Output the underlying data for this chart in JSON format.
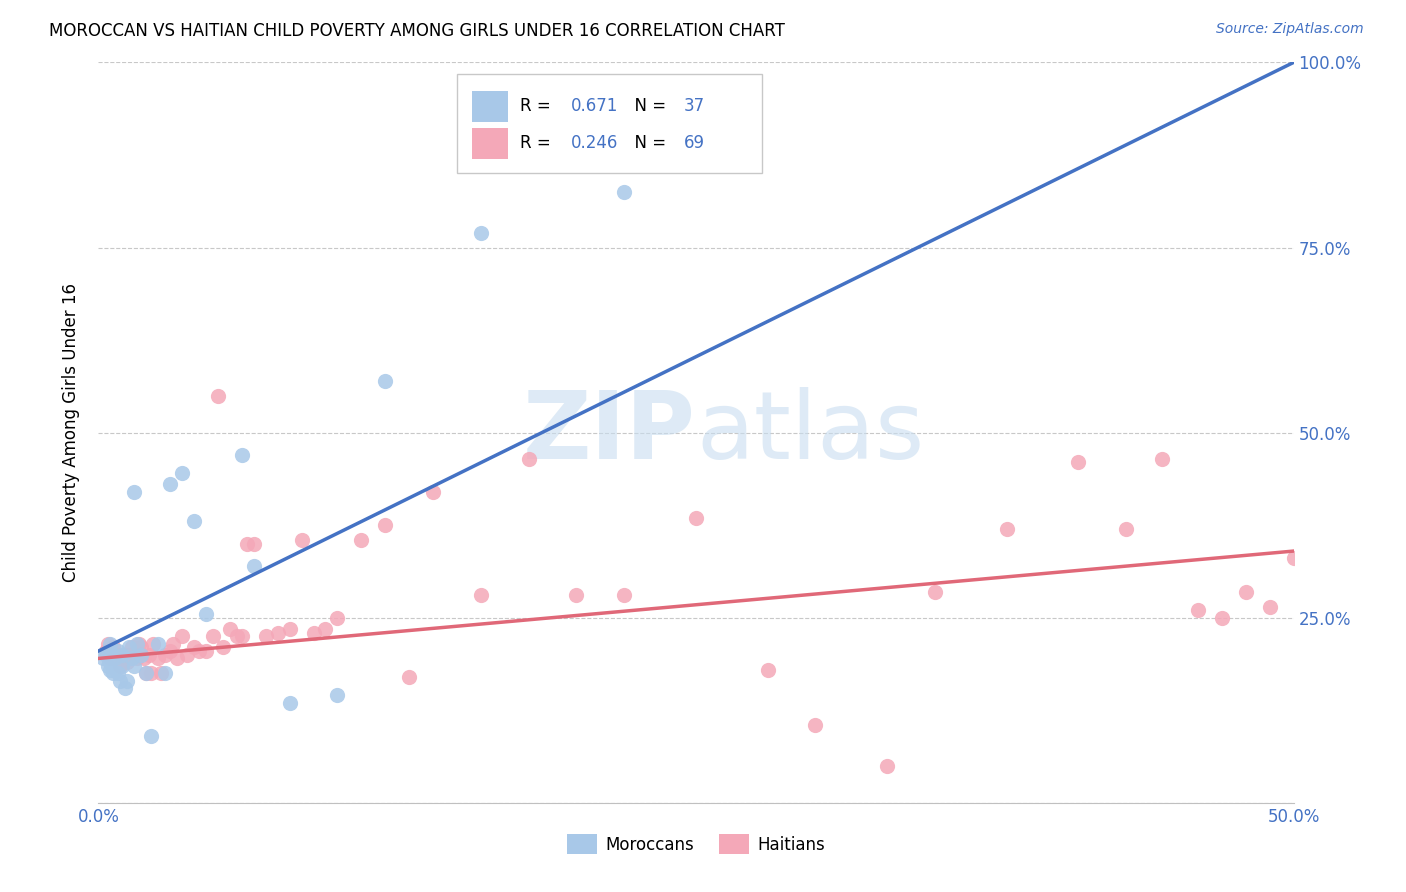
{
  "title": "MOROCCAN VS HAITIAN CHILD POVERTY AMONG GIRLS UNDER 16 CORRELATION CHART",
  "source": "Source: ZipAtlas.com",
  "ylabel": "Child Poverty Among Girls Under 16",
  "xlim": [
    0.0,
    0.5
  ],
  "ylim": [
    0.0,
    1.0
  ],
  "moroccan_R": "0.671",
  "moroccan_N": "37",
  "haitian_R": "0.246",
  "haitian_N": "69",
  "moroccan_color": "#a8c8e8",
  "haitian_color": "#f4a8b8",
  "moroccan_line_color": "#4472c4",
  "haitian_line_color": "#e06878",
  "moroccan_line": [
    0.0,
    0.205,
    0.5,
    1.0
  ],
  "haitian_line": [
    0.0,
    0.195,
    0.5,
    0.34
  ],
  "watermark_zip": "ZIP",
  "watermark_atlas": "atlas",
  "moroccan_scatter_x": [
    0.002,
    0.003,
    0.004,
    0.005,
    0.005,
    0.005,
    0.005,
    0.006,
    0.007,
    0.008,
    0.008,
    0.009,
    0.01,
    0.01,
    0.011,
    0.012,
    0.013,
    0.014,
    0.015,
    0.015,
    0.016,
    0.018,
    0.02,
    0.022,
    0.025,
    0.028,
    0.03,
    0.035,
    0.04,
    0.045,
    0.06,
    0.065,
    0.08,
    0.1,
    0.12,
    0.16,
    0.22
  ],
  "moroccan_scatter_y": [
    0.195,
    0.2,
    0.185,
    0.18,
    0.19,
    0.205,
    0.215,
    0.175,
    0.195,
    0.175,
    0.205,
    0.165,
    0.185,
    0.2,
    0.155,
    0.165,
    0.21,
    0.195,
    0.185,
    0.42,
    0.215,
    0.2,
    0.175,
    0.09,
    0.215,
    0.175,
    0.43,
    0.445,
    0.38,
    0.255,
    0.47,
    0.32,
    0.135,
    0.145,
    0.57,
    0.77,
    0.825
  ],
  "haitian_scatter_x": [
    0.003,
    0.004,
    0.005,
    0.006,
    0.007,
    0.008,
    0.009,
    0.01,
    0.011,
    0.012,
    0.013,
    0.014,
    0.015,
    0.016,
    0.017,
    0.018,
    0.019,
    0.02,
    0.021,
    0.022,
    0.023,
    0.025,
    0.026,
    0.028,
    0.03,
    0.031,
    0.033,
    0.035,
    0.037,
    0.04,
    0.042,
    0.045,
    0.048,
    0.05,
    0.052,
    0.055,
    0.058,
    0.06,
    0.062,
    0.065,
    0.07,
    0.075,
    0.08,
    0.085,
    0.09,
    0.095,
    0.1,
    0.11,
    0.12,
    0.13,
    0.14,
    0.16,
    0.18,
    0.2,
    0.22,
    0.25,
    0.28,
    0.3,
    0.33,
    0.35,
    0.38,
    0.41,
    0.43,
    0.445,
    0.46,
    0.47,
    0.48,
    0.49,
    0.5
  ],
  "haitian_scatter_y": [
    0.205,
    0.215,
    0.195,
    0.21,
    0.195,
    0.2,
    0.185,
    0.195,
    0.2,
    0.19,
    0.2,
    0.21,
    0.2,
    0.195,
    0.215,
    0.21,
    0.195,
    0.175,
    0.2,
    0.175,
    0.215,
    0.195,
    0.175,
    0.2,
    0.205,
    0.215,
    0.195,
    0.225,
    0.2,
    0.21,
    0.205,
    0.205,
    0.225,
    0.55,
    0.21,
    0.235,
    0.225,
    0.225,
    0.35,
    0.35,
    0.225,
    0.23,
    0.235,
    0.355,
    0.23,
    0.235,
    0.25,
    0.355,
    0.375,
    0.17,
    0.42,
    0.28,
    0.465,
    0.28,
    0.28,
    0.385,
    0.18,
    0.105,
    0.05,
    0.285,
    0.37,
    0.46,
    0.37,
    0.465,
    0.26,
    0.25,
    0.285,
    0.265,
    0.33
  ]
}
